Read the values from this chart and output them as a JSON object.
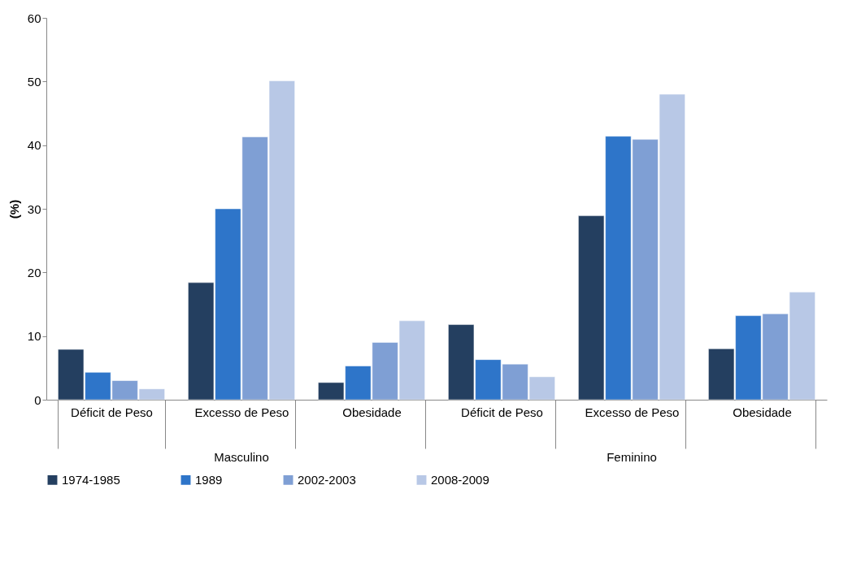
{
  "chart_data": {
    "type": "bar",
    "ylabel": "(%)",
    "categories": [
      "Déficit de Peso",
      "Excesso de Peso",
      "Obesidade",
      "Déficit de Peso",
      "Excesso de Peso",
      "Obesidade"
    ],
    "series": [
      {
        "name": "1974-1985",
        "color": "#243f60",
        "values": [
          7.9,
          18.4,
          2.7,
          11.8,
          28.9,
          8.0
        ]
      },
      {
        "name": "1989",
        "color": "#2e75c9",
        "values": [
          4.3,
          30.0,
          5.3,
          6.3,
          41.4,
          13.2
        ]
      },
      {
        "name": "2002-2003",
        "color": "#7f9fd4",
        "values": [
          3.0,
          41.3,
          9.0,
          5.6,
          40.9,
          13.5
        ]
      },
      {
        "name": "2008-2009",
        "color": "#b8c8e6",
        "values": [
          1.7,
          50.1,
          12.4,
          3.6,
          48.0,
          16.9
        ]
      }
    ],
    "ylim": [
      0,
      60
    ],
    "yticks": [
      0,
      10,
      20,
      30,
      40,
      50,
      60
    ],
    "grid": false,
    "legend": "bottom",
    "annotations": [
      "Masculino",
      "Feminino"
    ]
  }
}
